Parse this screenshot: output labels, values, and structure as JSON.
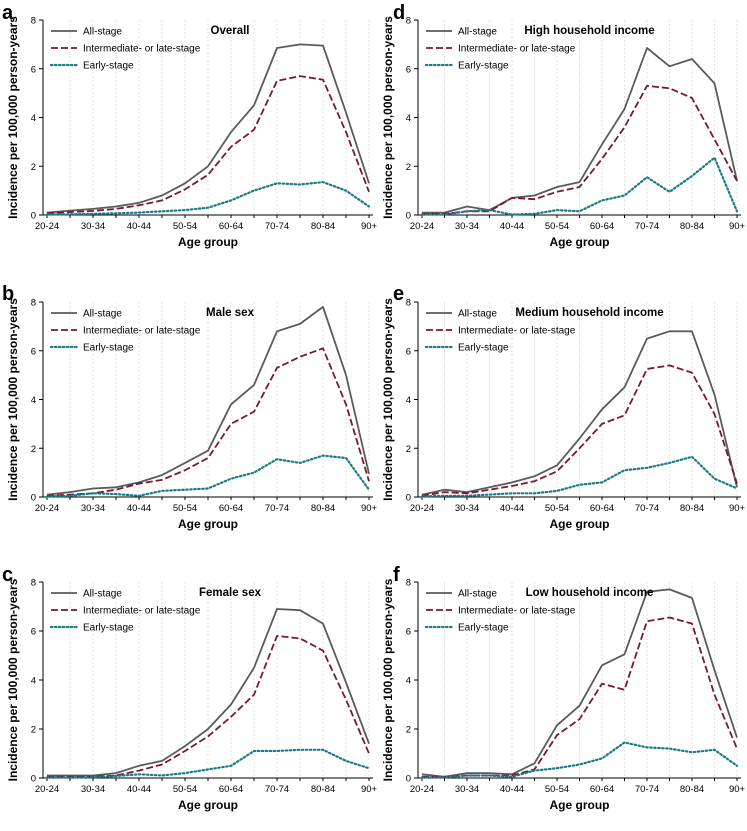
{
  "figure": {
    "colors": {
      "all_stage": "#5a5a5a",
      "late_stage": "#7b1631",
      "early_stage": "#1a7a8c"
    },
    "legend": [
      "All-stage",
      "Intermediate- or late-stage",
      "Early-stage"
    ]
  },
  "chart_data": [
    {
      "letter": "a",
      "type": "line",
      "title": "Overall",
      "xlabel": "Age group",
      "ylabel": "Incidence per 100,000 person-years",
      "ylim": [
        0,
        8
      ],
      "yticks": [
        0,
        2,
        4,
        6,
        8
      ],
      "categories": [
        "20-24",
        "25-29",
        "30-34",
        "35-39",
        "40-44",
        "45-49",
        "50-54",
        "55-59",
        "60-64",
        "65-69",
        "70-74",
        "75-79",
        "80-84",
        "85-89",
        "90+"
      ],
      "xtick_labels": [
        "20-24",
        "30-34",
        "40-44",
        "50-54",
        "60-64",
        "70-74",
        "80-84",
        "90+"
      ],
      "series": [
        {
          "name": "All-stage",
          "values": [
            0.1,
            0.18,
            0.25,
            0.35,
            0.5,
            0.8,
            1.3,
            2.0,
            3.4,
            4.5,
            6.85,
            7.0,
            6.95,
            4.2,
            1.3
          ]
        },
        {
          "name": "Intermediate- or late-stage",
          "values": [
            0.08,
            0.12,
            0.17,
            0.25,
            0.4,
            0.6,
            1.05,
            1.65,
            2.8,
            3.5,
            5.5,
            5.7,
            5.55,
            3.4,
            0.95
          ]
        },
        {
          "name": "Early-stage",
          "values": [
            0.02,
            0.03,
            0.05,
            0.07,
            0.1,
            0.15,
            0.2,
            0.3,
            0.6,
            1.0,
            1.3,
            1.25,
            1.35,
            1.0,
            0.35
          ]
        }
      ]
    },
    {
      "letter": "b",
      "type": "line",
      "title": "Male sex",
      "xlabel": "Age group",
      "ylabel": "Incidence per 100,000 person-years",
      "ylim": [
        0,
        8
      ],
      "yticks": [
        0,
        2,
        4,
        6,
        8
      ],
      "categories": [
        "20-24",
        "25-29",
        "30-34",
        "35-39",
        "40-44",
        "45-49",
        "50-54",
        "55-59",
        "60-64",
        "65-69",
        "70-74",
        "75-79",
        "80-84",
        "85-89",
        "90+"
      ],
      "xtick_labels": [
        "20-24",
        "30-34",
        "40-44",
        "50-54",
        "60-64",
        "70-74",
        "80-84",
        "90+"
      ],
      "series": [
        {
          "name": "All-stage",
          "values": [
            0.1,
            0.2,
            0.35,
            0.4,
            0.6,
            0.9,
            1.4,
            1.9,
            3.8,
            4.6,
            6.8,
            7.1,
            7.8,
            5.0,
            0.95
          ]
        },
        {
          "name": "Intermediate- or late-stage",
          "values": [
            0.05,
            0.1,
            0.15,
            0.3,
            0.55,
            0.7,
            1.1,
            1.6,
            3.0,
            3.5,
            5.3,
            5.75,
            6.1,
            3.8,
            0.65
          ]
        },
        {
          "name": "Early-stage",
          "values": [
            0.02,
            0.05,
            0.15,
            0.12,
            0.05,
            0.25,
            0.3,
            0.35,
            0.75,
            1.0,
            1.55,
            1.4,
            1.7,
            1.6,
            0.3
          ]
        }
      ]
    },
    {
      "letter": "c",
      "type": "line",
      "title": "Female sex",
      "xlabel": "Age group",
      "ylabel": "Incidence per 100,000 person-years",
      "ylim": [
        0,
        8
      ],
      "yticks": [
        0,
        2,
        4,
        6,
        8
      ],
      "categories": [
        "20-24",
        "25-29",
        "30-34",
        "35-39",
        "40-44",
        "45-49",
        "50-54",
        "55-59",
        "60-64",
        "65-69",
        "70-74",
        "75-79",
        "80-84",
        "85-89",
        "90+"
      ],
      "xtick_labels": [
        "20-24",
        "30-34",
        "40-44",
        "50-54",
        "60-64",
        "70-74",
        "80-84",
        "90+"
      ],
      "series": [
        {
          "name": "All-stage",
          "values": [
            0.1,
            0.1,
            0.1,
            0.2,
            0.5,
            0.7,
            1.3,
            2.0,
            3.0,
            4.5,
            6.9,
            6.85,
            6.3,
            3.9,
            1.4
          ]
        },
        {
          "name": "Intermediate- or late-stage",
          "values": [
            0.05,
            0.05,
            0.05,
            0.1,
            0.3,
            0.55,
            1.1,
            1.7,
            2.5,
            3.4,
            5.8,
            5.7,
            5.2,
            3.2,
            1.0
          ]
        },
        {
          "name": "Early-stage",
          "values": [
            0.02,
            0.02,
            0.03,
            0.08,
            0.15,
            0.1,
            0.2,
            0.35,
            0.5,
            1.1,
            1.1,
            1.15,
            1.15,
            0.7,
            0.4
          ]
        }
      ]
    },
    {
      "letter": "d",
      "type": "line",
      "title": "High household income",
      "xlabel": "Age group",
      "ylabel": "Incidence per 100,000 person-years",
      "ylim": [
        0,
        8
      ],
      "yticks": [
        0,
        2,
        4,
        6,
        8
      ],
      "categories": [
        "20-24",
        "25-29",
        "30-34",
        "35-39",
        "40-44",
        "45-49",
        "50-54",
        "55-59",
        "60-64",
        "65-69",
        "70-74",
        "75-79",
        "80-84",
        "85-89",
        "90+"
      ],
      "xtick_labels": [
        "20-24",
        "30-34",
        "40-44",
        "50-54",
        "60-64",
        "70-74",
        "80-84",
        "90+"
      ],
      "series": [
        {
          "name": "All-stage",
          "values": [
            0.1,
            0.1,
            0.35,
            0.2,
            0.7,
            0.8,
            1.15,
            1.35,
            2.9,
            4.35,
            6.85,
            6.1,
            6.4,
            5.4,
            1.4
          ]
        },
        {
          "name": "Intermediate- or late-stage",
          "values": [
            0.05,
            0.05,
            0.15,
            0.15,
            0.7,
            0.65,
            0.95,
            1.15,
            2.3,
            3.6,
            5.3,
            5.2,
            4.8,
            3.1,
            1.4
          ]
        },
        {
          "name": "Early-stage",
          "values": [
            0.02,
            0.02,
            0.15,
            0.2,
            0.02,
            0.05,
            0.2,
            0.15,
            0.6,
            0.8,
            1.55,
            0.95,
            1.6,
            2.35,
            0.15
          ]
        }
      ]
    },
    {
      "letter": "e",
      "type": "line",
      "title": "Medium household income",
      "xlabel": "Age group",
      "ylabel": "Incidence per 100,000 person-years",
      "ylim": [
        0,
        8
      ],
      "yticks": [
        0,
        2,
        4,
        6,
        8
      ],
      "categories": [
        "20-24",
        "25-29",
        "30-34",
        "35-39",
        "40-44",
        "45-49",
        "50-54",
        "55-59",
        "60-64",
        "65-69",
        "70-74",
        "75-79",
        "80-84",
        "85-89",
        "90+"
      ],
      "xtick_labels": [
        "20-24",
        "30-34",
        "40-44",
        "50-54",
        "60-64",
        "70-74",
        "80-84",
        "90+"
      ],
      "series": [
        {
          "name": "All-stage",
          "values": [
            0.1,
            0.3,
            0.2,
            0.4,
            0.6,
            0.85,
            1.3,
            2.4,
            3.6,
            4.5,
            6.5,
            6.8,
            6.8,
            4.2,
            0.4
          ]
        },
        {
          "name": "Intermediate- or late-stage",
          "values": [
            0.05,
            0.2,
            0.15,
            0.3,
            0.45,
            0.65,
            1.05,
            2.0,
            3.0,
            3.35,
            5.25,
            5.4,
            5.1,
            3.4,
            0.55
          ]
        },
        {
          "name": "Early-stage",
          "values": [
            0.02,
            0.05,
            0.05,
            0.1,
            0.15,
            0.15,
            0.25,
            0.5,
            0.6,
            1.1,
            1.2,
            1.4,
            1.65,
            0.75,
            0.35
          ]
        }
      ]
    },
    {
      "letter": "f",
      "type": "line",
      "title": "Low household income",
      "xlabel": "Age group",
      "ylabel": "Incidence per 100,000 person-years",
      "ylim": [
        0,
        8
      ],
      "yticks": [
        0,
        2,
        4,
        6,
        8
      ],
      "categories": [
        "20-24",
        "25-29",
        "30-34",
        "35-39",
        "40-44",
        "45-49",
        "50-54",
        "55-59",
        "60-64",
        "65-69",
        "70-74",
        "75-79",
        "80-84",
        "85-89",
        "90+"
      ],
      "xtick_labels": [
        "20-24",
        "30-34",
        "40-44",
        "50-54",
        "60-64",
        "70-74",
        "80-84",
        "90+"
      ],
      "series": [
        {
          "name": "All-stage",
          "values": [
            0.15,
            0.05,
            0.2,
            0.2,
            0.15,
            0.6,
            2.15,
            2.95,
            4.6,
            5.05,
            7.6,
            7.7,
            7.35,
            4.4,
            1.65
          ]
        },
        {
          "name": "Intermediate- or late-stage",
          "values": [
            0.05,
            0.05,
            0.1,
            0.1,
            0.1,
            0.35,
            1.75,
            2.4,
            3.85,
            3.6,
            6.4,
            6.55,
            6.3,
            3.4,
            1.2
          ]
        },
        {
          "name": "Early-stage",
          "values": [
            0.02,
            0.02,
            0.1,
            0.1,
            0.05,
            0.3,
            0.4,
            0.55,
            0.8,
            1.45,
            1.25,
            1.2,
            1.05,
            1.15,
            0.5
          ]
        }
      ]
    }
  ]
}
